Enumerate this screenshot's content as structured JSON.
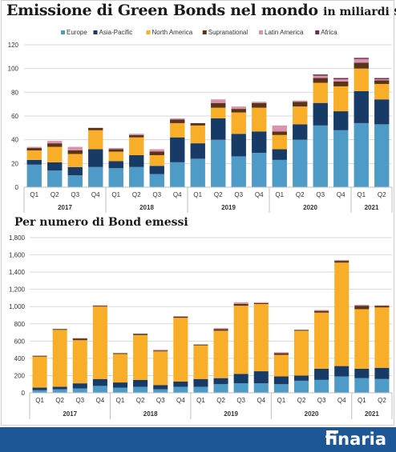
{
  "title": "Emissione di Green Bonds nel mondo",
  "title_unit": "in miliardi $",
  "subtitle": "Per numero di Bond emessi",
  "brand": "finaria",
  "chart_data": [
    {
      "type": "bar",
      "stacked": true,
      "title": "Emissione di Green Bonds nel mondo in miliardi $",
      "legend_position": "top",
      "grid": true,
      "ylim": [
        0,
        120
      ],
      "yticks": [
        "0",
        "20",
        "40",
        "60",
        "80",
        "100",
        "120"
      ],
      "quarters": [
        "Q1",
        "Q2",
        "Q3",
        "Q4",
        "Q1",
        "Q2",
        "Q3",
        "Q4",
        "Q1",
        "Q2",
        "Q3",
        "Q4",
        "Q1",
        "Q2",
        "Q3",
        "Q4",
        "Q1",
        "Q2"
      ],
      "years": [
        {
          "label": "2017",
          "span": [
            0,
            3
          ]
        },
        {
          "label": "2018",
          "span": [
            4,
            7
          ]
        },
        {
          "label": "2019",
          "span": [
            8,
            11
          ]
        },
        {
          "label": "2020",
          "span": [
            12,
            15
          ]
        },
        {
          "label": "2021",
          "span": [
            16,
            17
          ]
        }
      ],
      "series": [
        {
          "name": "Europe",
          "color": "#4f9bc7",
          "values": [
            19,
            14,
            10,
            17,
            16,
            17,
            11,
            21,
            24,
            40,
            26,
            29,
            23,
            40,
            52,
            48,
            54,
            53
          ]
        },
        {
          "name": "Asia-Pacific",
          "color": "#183a67",
          "values": [
            4,
            7,
            7,
            15,
            6,
            10,
            7,
            21,
            13,
            18,
            19,
            18,
            9,
            13,
            19,
            16,
            27,
            21
          ]
        },
        {
          "name": "North America",
          "color": "#f9ae2a",
          "values": [
            8,
            13,
            11,
            16,
            8,
            15,
            9,
            12,
            15,
            9,
            18,
            20,
            12,
            15,
            17,
            21,
            19,
            13
          ]
        },
        {
          "name": "Supranational",
          "color": "#5a3318",
          "values": [
            2,
            3,
            3,
            2,
            2,
            2,
            3,
            3,
            2,
            4,
            3,
            4,
            3,
            4,
            4,
            4,
            5,
            3
          ]
        },
        {
          "name": "Latin America",
          "color": "#dc92ac",
          "values": [
            1,
            2,
            3,
            0,
            1,
            1,
            2,
            1,
            0,
            3,
            2,
            1,
            5,
            1,
            2,
            2,
            3,
            1
          ]
        },
        {
          "name": "Africa",
          "color": "#6e2a52",
          "values": [
            0,
            0,
            0,
            0,
            0,
            0,
            0,
            0,
            0,
            0,
            0,
            0,
            0,
            0,
            1,
            1,
            1,
            1
          ]
        }
      ]
    },
    {
      "type": "bar",
      "stacked": true,
      "title": "Per numero di Bond emessi",
      "grid": true,
      "ylim": [
        0,
        1800
      ],
      "yticks": [
        "0",
        "200",
        "400",
        "600",
        "800",
        "1,000",
        "1,200",
        "1,400",
        "1,600",
        "1,800"
      ],
      "quarters": [
        "Q1",
        "Q2",
        "Q3",
        "Q4",
        "Q1",
        "Q2",
        "Q3",
        "Q4",
        "Q1",
        "Q2",
        "Q3",
        "Q4",
        "Q1",
        "Q2",
        "Q3",
        "Q4",
        "Q1",
        "Q2"
      ],
      "years": [
        {
          "label": "2017",
          "span": [
            0,
            3
          ]
        },
        {
          "label": "2018",
          "span": [
            4,
            7
          ]
        },
        {
          "label": "2019",
          "span": [
            8,
            11
          ]
        },
        {
          "label": "2020",
          "span": [
            12,
            15
          ]
        },
        {
          "label": "2021",
          "span": [
            16,
            17
          ]
        }
      ],
      "series": [
        {
          "name": "Europe",
          "color": "#4f9bc7",
          "values": [
            30,
            40,
            50,
            80,
            60,
            70,
            40,
            70,
            70,
            100,
            110,
            110,
            100,
            140,
            150,
            190,
            170,
            160
          ]
        },
        {
          "name": "Asia-Pacific",
          "color": "#183a67",
          "values": [
            30,
            30,
            60,
            80,
            60,
            80,
            50,
            60,
            90,
            70,
            110,
            140,
            90,
            60,
            130,
            120,
            110,
            130
          ]
        },
        {
          "name": "North America",
          "color": "#f9ae2a",
          "values": [
            360,
            660,
            500,
            840,
            330,
            520,
            390,
            740,
            390,
            550,
            790,
            780,
            250,
            520,
            650,
            1200,
            690,
            700
          ]
        },
        {
          "name": "Supranational",
          "color": "#5a3318",
          "values": [
            10,
            10,
            20,
            10,
            10,
            15,
            10,
            15,
            10,
            20,
            20,
            10,
            20,
            10,
            20,
            20,
            40,
            20
          ]
        },
        {
          "name": "Latin America",
          "color": "#dc92ac",
          "values": [
            0,
            0,
            5,
            5,
            0,
            0,
            10,
            0,
            0,
            10,
            20,
            10,
            10,
            0,
            10,
            10,
            10,
            5
          ]
        },
        {
          "name": "Africa",
          "color": "#6e2a52",
          "values": [
            0,
            0,
            0,
            0,
            0,
            0,
            0,
            0,
            0,
            0,
            0,
            0,
            0,
            0,
            0,
            0,
            0,
            0
          ]
        }
      ]
    }
  ]
}
